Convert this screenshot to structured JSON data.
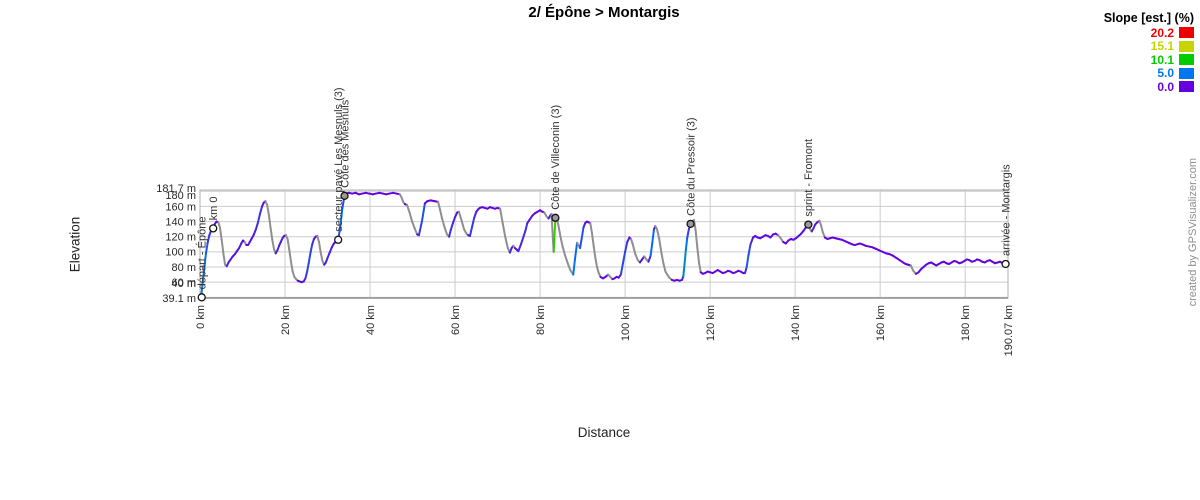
{
  "page": {
    "title": "2/ Épône > Montargis"
  },
  "axes": {
    "y_title": "Elevation",
    "x_title": "Distance"
  },
  "watermark": "created by GPSVisualizer.com",
  "legend": {
    "title": "Slope [est.] (%)",
    "items": [
      {
        "label": "20.2",
        "color": "#ee0000"
      },
      {
        "label": "15.1",
        "color": "#c8d400"
      },
      {
        "label": "10.1",
        "color": "#00cc00"
      },
      {
        "label": "5.0",
        "color": "#0077ee"
      },
      {
        "label": "0.0",
        "color": "#6600dd"
      }
    ]
  },
  "chart_data": {
    "type": "line",
    "title": "2/ Épône > Montargis",
    "xlabel": "Distance",
    "ylabel": "Elevation",
    "x_unit": "km",
    "y_unit": "m",
    "xlim": [
      0,
      190.07
    ],
    "ylim": [
      39.1,
      181.7
    ],
    "grid": true,
    "descent_color": "#8f8f8f",
    "slope_stops": [
      [
        0,
        "#6600dd"
      ],
      [
        5,
        "#0077ee"
      ],
      [
        10.1,
        "#00cc00"
      ],
      [
        15.1,
        "#c8d400"
      ],
      [
        20.2,
        "#ee0000"
      ]
    ],
    "x_ticks": [
      {
        "label": "0 km",
        "km": 0
      },
      {
        "label": "20 km",
        "km": 20
      },
      {
        "label": "40 km",
        "km": 40
      },
      {
        "label": "60 km",
        "km": 60
      },
      {
        "label": "80 km",
        "km": 80
      },
      {
        "label": "100 km",
        "km": 100
      },
      {
        "label": "120 km",
        "km": 120
      },
      {
        "label": "140 km",
        "km": 140
      },
      {
        "label": "160 km",
        "km": 160
      },
      {
        "label": "180 km",
        "km": 180
      },
      {
        "label": "190.07 km",
        "km": 190.07
      }
    ],
    "y_ticks": [
      {
        "label": "181.7 m",
        "m": 181.7,
        "nudge": -2,
        "grid": false
      },
      {
        "label": "180 m",
        "m": 180,
        "nudge": 4
      },
      {
        "label": "160 m",
        "m": 160
      },
      {
        "label": "140 m",
        "m": 140
      },
      {
        "label": "120 m",
        "m": 120
      },
      {
        "label": "100 m",
        "m": 100
      },
      {
        "label": "80 m",
        "m": 80
      },
      {
        "label": "60 m",
        "m": 60
      },
      {
        "label": "40 m",
        "m": 40,
        "nudge": -14
      },
      {
        "label": "39.1 m",
        "m": 39.1,
        "grid": false
      }
    ],
    "waypoints": [
      {
        "name": "départ - Épône",
        "km": 0.4,
        "elevation_m": 40,
        "fill": "#ffffff"
      },
      {
        "name": "km 0",
        "km": 3.1,
        "elevation_m": 131,
        "fill": "#ffffff"
      },
      {
        "name": "secteur pavé Les Mesnuls (3)",
        "km": 32.5,
        "elevation_m": 116,
        "fill": "#ffffff"
      },
      {
        "name": "Côte des Mesnuls",
        "km": 34,
        "elevation_m": 174,
        "fill": "#9a9a9a"
      },
      {
        "name": "Côte de Villeconin (3)",
        "km": 83.6,
        "elevation_m": 145,
        "fill": "#9a9a9a"
      },
      {
        "name": "Côte du Pressoir (3)",
        "km": 115.4,
        "elevation_m": 137,
        "fill": "#9a9a9a"
      },
      {
        "name": "sprint - Fromont",
        "km": 143.1,
        "elevation_m": 136,
        "fill": "#9a9a9a"
      },
      {
        "name": "arrivée - Montargis",
        "km": 189.5,
        "elevation_m": 84,
        "fill": "#ffffff"
      }
    ],
    "profile": [
      [
        0,
        39.1
      ],
      [
        0.3,
        42
      ],
      [
        0.6,
        58
      ],
      [
        1,
        78
      ],
      [
        1.4,
        98
      ],
      [
        1.8,
        112
      ],
      [
        2.2,
        122
      ],
      [
        2.6,
        128
      ],
      [
        3.1,
        131
      ],
      [
        3.5,
        137
      ],
      [
        3.9,
        140
      ],
      [
        4.3,
        139
      ],
      [
        4.7,
        132
      ],
      [
        5.1,
        116
      ],
      [
        5.5,
        98
      ],
      [
        5.9,
        83
      ],
      [
        6.3,
        81
      ],
      [
        6.7,
        86
      ],
      [
        7.2,
        90
      ],
      [
        7.7,
        94
      ],
      [
        8.2,
        97
      ],
      [
        8.7,
        101
      ],
      [
        9.2,
        105
      ],
      [
        9.7,
        111
      ],
      [
        10.1,
        115
      ],
      [
        10.5,
        113
      ],
      [
        10.9,
        109
      ],
      [
        11.3,
        109
      ],
      [
        11.7,
        113
      ],
      [
        12.1,
        117
      ],
      [
        12.6,
        122
      ],
      [
        13.1,
        129
      ],
      [
        13.6,
        138
      ],
      [
        14.1,
        150
      ],
      [
        14.6,
        160
      ],
      [
        15,
        165
      ],
      [
        15.4,
        167
      ],
      [
        15.8,
        162
      ],
      [
        16.2,
        149
      ],
      [
        16.6,
        132
      ],
      [
        17,
        116
      ],
      [
        17.4,
        104
      ],
      [
        17.8,
        98
      ],
      [
        18.2,
        102
      ],
      [
        18.6,
        108
      ],
      [
        19,
        113
      ],
      [
        19.4,
        118
      ],
      [
        19.8,
        121
      ],
      [
        20.2,
        122
      ],
      [
        20.6,
        117
      ],
      [
        21,
        103
      ],
      [
        21.4,
        87
      ],
      [
        21.8,
        74
      ],
      [
        22.2,
        67
      ],
      [
        22.6,
        64
      ],
      [
        23,
        62
      ],
      [
        23.4,
        61
      ],
      [
        23.9,
        60
      ],
      [
        24.4,
        61
      ],
      [
        24.8,
        65
      ],
      [
        25.2,
        74
      ],
      [
        25.6,
        86
      ],
      [
        26,
        99
      ],
      [
        26.4,
        110
      ],
      [
        26.8,
        117
      ],
      [
        27.2,
        120
      ],
      [
        27.6,
        121
      ],
      [
        28,
        113
      ],
      [
        28.4,
        99
      ],
      [
        28.8,
        88
      ],
      [
        29.2,
        83
      ],
      [
        29.6,
        86
      ],
      [
        30,
        92
      ],
      [
        30.5,
        99
      ],
      [
        31,
        106
      ],
      [
        31.5,
        111
      ],
      [
        32,
        114
      ],
      [
        32.5,
        116
      ],
      [
        33,
        133
      ],
      [
        33.5,
        158
      ],
      [
        34,
        174
      ],
      [
        34.4,
        177
      ],
      [
        35,
        178
      ],
      [
        35.8,
        177
      ],
      [
        36.6,
        178
      ],
      [
        37.4,
        176
      ],
      [
        38.2,
        177
      ],
      [
        39,
        178
      ],
      [
        39.8,
        177
      ],
      [
        40.6,
        176
      ],
      [
        41.4,
        177
      ],
      [
        42.2,
        178
      ],
      [
        43,
        177
      ],
      [
        43.8,
        176
      ],
      [
        44.6,
        177
      ],
      [
        45.4,
        178
      ],
      [
        46.2,
        177
      ],
      [
        47,
        176
      ],
      [
        47.4,
        172
      ],
      [
        47.8,
        166
      ],
      [
        48.2,
        163
      ],
      [
        48.7,
        162
      ],
      [
        49.3,
        152
      ],
      [
        49.9,
        140
      ],
      [
        50.5,
        131
      ],
      [
        51.1,
        123
      ],
      [
        51.5,
        122
      ],
      [
        52.2,
        140
      ],
      [
        52.9,
        164
      ],
      [
        53.5,
        167
      ],
      [
        54.3,
        168
      ],
      [
        55.1,
        167
      ],
      [
        56,
        166
      ],
      [
        56.5,
        155
      ],
      [
        56.9,
        145
      ],
      [
        57.5,
        133
      ],
      [
        58.1,
        123
      ],
      [
        58.6,
        120
      ],
      [
        59,
        129
      ],
      [
        59.5,
        138
      ],
      [
        60,
        146
      ],
      [
        60.5,
        152
      ],
      [
        60.9,
        153
      ],
      [
        61.5,
        142
      ],
      [
        62.1,
        130
      ],
      [
        62.7,
        124
      ],
      [
        63.1,
        122
      ],
      [
        63.5,
        121
      ],
      [
        64,
        133
      ],
      [
        64.5,
        145
      ],
      [
        65,
        153
      ],
      [
        65.4,
        156
      ],
      [
        65.8,
        158
      ],
      [
        66.4,
        159
      ],
      [
        67,
        158
      ],
      [
        67.6,
        157
      ],
      [
        68.2,
        159
      ],
      [
        68.8,
        158
      ],
      [
        69.4,
        157
      ],
      [
        70,
        158
      ],
      [
        70.6,
        157
      ],
      [
        71.2,
        138
      ],
      [
        71.8,
        120
      ],
      [
        72.4,
        105
      ],
      [
        72.9,
        99
      ],
      [
        73.3,
        105
      ],
      [
        73.7,
        108
      ],
      [
        74.1,
        105
      ],
      [
        74.5,
        103
      ],
      [
        74.9,
        101
      ],
      [
        75.5,
        110
      ],
      [
        76.1,
        120
      ],
      [
        76.6,
        129
      ],
      [
        77,
        138
      ],
      [
        77.6,
        143
      ],
      [
        78.2,
        148
      ],
      [
        78.8,
        151
      ],
      [
        79.4,
        153
      ],
      [
        80,
        155
      ],
      [
        80.5,
        153
      ],
      [
        81,
        152
      ],
      [
        81.5,
        147
      ],
      [
        82,
        144
      ],
      [
        82.4,
        148
      ],
      [
        82.7,
        150
      ],
      [
        83,
        118
      ],
      [
        83.2,
        100
      ],
      [
        83.4,
        122
      ],
      [
        83.6,
        145
      ],
      [
        83.9,
        147
      ],
      [
        84.3,
        135
      ],
      [
        84.8,
        120
      ],
      [
        85.3,
        107
      ],
      [
        85.9,
        95
      ],
      [
        86.5,
        85
      ],
      [
        87.1,
        76
      ],
      [
        87.8,
        70
      ],
      [
        88.2,
        90
      ],
      [
        88.7,
        112
      ],
      [
        89.1,
        108
      ],
      [
        89.4,
        105
      ],
      [
        89.8,
        118
      ],
      [
        90.2,
        132
      ],
      [
        90.6,
        138
      ],
      [
        91,
        140
      ],
      [
        91.4,
        139
      ],
      [
        91.8,
        138
      ],
      [
        92.2,
        125
      ],
      [
        92.6,
        108
      ],
      [
        93,
        92
      ],
      [
        93.4,
        80
      ],
      [
        93.8,
        72
      ],
      [
        94.2,
        67
      ],
      [
        94.8,
        65
      ],
      [
        95.4,
        67
      ],
      [
        96,
        70
      ],
      [
        96.5,
        67
      ],
      [
        97,
        64
      ],
      [
        97.5,
        65
      ],
      [
        98,
        67
      ],
      [
        98.5,
        66
      ],
      [
        99,
        70
      ],
      [
        99.5,
        85
      ],
      [
        100,
        100
      ],
      [
        100.5,
        113
      ],
      [
        101,
        119
      ],
      [
        101.4,
        117
      ],
      [
        101.8,
        110
      ],
      [
        102.4,
        97
      ],
      [
        103,
        89
      ],
      [
        103.5,
        86
      ],
      [
        104,
        90
      ],
      [
        104.5,
        94
      ],
      [
        105,
        90
      ],
      [
        105.5,
        87
      ],
      [
        106,
        95
      ],
      [
        106.4,
        112
      ],
      [
        106.8,
        130
      ],
      [
        107.1,
        134
      ],
      [
        107.5,
        130
      ],
      [
        108,
        118
      ],
      [
        108.5,
        100
      ],
      [
        109,
        85
      ],
      [
        109.5,
        74
      ],
      [
        109.9,
        70
      ],
      [
        110.4,
        66
      ],
      [
        111,
        63
      ],
      [
        111.6,
        62
      ],
      [
        112.2,
        63
      ],
      [
        112.8,
        62
      ],
      [
        113.4,
        63
      ],
      [
        113.7,
        68
      ],
      [
        114,
        85
      ],
      [
        114.3,
        103
      ],
      [
        114.6,
        118
      ],
      [
        115,
        130
      ],
      [
        115.4,
        137
      ],
      [
        115.8,
        140
      ],
      [
        116.2,
        142
      ],
      [
        116.6,
        128
      ],
      [
        117,
        105
      ],
      [
        117.4,
        85
      ],
      [
        117.8,
        73
      ],
      [
        118.3,
        71
      ],
      [
        118.8,
        72
      ],
      [
        119.4,
        74
      ],
      [
        120,
        73
      ],
      [
        120.6,
        72
      ],
      [
        121.2,
        74
      ],
      [
        121.8,
        76
      ],
      [
        122.4,
        74
      ],
      [
        123,
        72
      ],
      [
        123.6,
        73
      ],
      [
        124.2,
        75
      ],
      [
        124.8,
        74
      ],
      [
        125.4,
        72
      ],
      [
        126,
        73
      ],
      [
        126.6,
        75
      ],
      [
        127.2,
        74
      ],
      [
        127.8,
        72
      ],
      [
        128.2,
        72
      ],
      [
        128.6,
        80
      ],
      [
        129,
        95
      ],
      [
        129.5,
        110
      ],
      [
        130.1,
        119
      ],
      [
        130.6,
        121
      ],
      [
        131.2,
        119
      ],
      [
        131.8,
        118
      ],
      [
        132.4,
        120
      ],
      [
        133,
        122
      ],
      [
        133.6,
        121
      ],
      [
        134.2,
        119
      ],
      [
        134.8,
        123
      ],
      [
        135.4,
        124
      ],
      [
        136,
        122
      ],
      [
        136.6,
        118
      ],
      [
        137.2,
        113
      ],
      [
        137.8,
        111
      ],
      [
        138.4,
        115
      ],
      [
        139,
        117
      ],
      [
        139.6,
        116
      ],
      [
        140.2,
        118
      ],
      [
        140.8,
        121
      ],
      [
        141.4,
        124
      ],
      [
        142,
        128
      ],
      [
        142.6,
        133
      ],
      [
        143.1,
        136
      ],
      [
        143.5,
        130
      ],
      [
        143.9,
        127
      ],
      [
        144.3,
        131
      ],
      [
        144.7,
        136
      ],
      [
        145.2,
        139
      ],
      [
        145.7,
        141
      ],
      [
        146.1,
        135
      ],
      [
        146.5,
        126
      ],
      [
        147,
        119
      ],
      [
        147.6,
        117
      ],
      [
        148.2,
        118
      ],
      [
        148.8,
        119
      ],
      [
        149.5,
        118
      ],
      [
        150.2,
        117
      ],
      [
        151,
        116
      ],
      [
        151.8,
        114
      ],
      [
        152.6,
        112
      ],
      [
        153.4,
        110
      ],
      [
        154,
        109
      ],
      [
        154.6,
        110
      ],
      [
        155.2,
        111
      ],
      [
        155.8,
        110
      ],
      [
        156.6,
        108
      ],
      [
        157.4,
        107
      ],
      [
        158.2,
        106
      ],
      [
        159,
        104
      ],
      [
        159.8,
        102
      ],
      [
        160.6,
        100
      ],
      [
        161.4,
        98
      ],
      [
        162.2,
        97
      ],
      [
        163,
        95
      ],
      [
        163.8,
        92
      ],
      [
        164.6,
        89
      ],
      [
        165.4,
        86
      ],
      [
        166,
        84
      ],
      [
        166.6,
        83
      ],
      [
        167.2,
        82
      ],
      [
        167.8,
        75
      ],
      [
        168.4,
        71
      ],
      [
        169,
        73
      ],
      [
        169.6,
        77
      ],
      [
        170.2,
        80
      ],
      [
        170.8,
        83
      ],
      [
        171.4,
        85
      ],
      [
        172,
        86
      ],
      [
        172.6,
        84
      ],
      [
        173.2,
        82
      ],
      [
        173.8,
        84
      ],
      [
        174.4,
        86
      ],
      [
        175,
        87
      ],
      [
        175.6,
        85
      ],
      [
        176.2,
        84
      ],
      [
        176.8,
        86
      ],
      [
        177.4,
        88
      ],
      [
        178,
        87
      ],
      [
        178.6,
        85
      ],
      [
        179.2,
        86
      ],
      [
        179.8,
        88
      ],
      [
        180.4,
        90
      ],
      [
        181,
        89
      ],
      [
        181.6,
        87
      ],
      [
        182.2,
        88
      ],
      [
        182.8,
        90
      ],
      [
        183.4,
        89
      ],
      [
        184,
        87
      ],
      [
        184.6,
        86
      ],
      [
        185.2,
        88
      ],
      [
        185.8,
        89
      ],
      [
        186.4,
        87
      ],
      [
        187,
        85
      ],
      [
        187.6,
        86
      ],
      [
        188.2,
        87
      ],
      [
        188.8,
        85
      ],
      [
        189.4,
        84
      ],
      [
        190.07,
        84
      ]
    ]
  }
}
